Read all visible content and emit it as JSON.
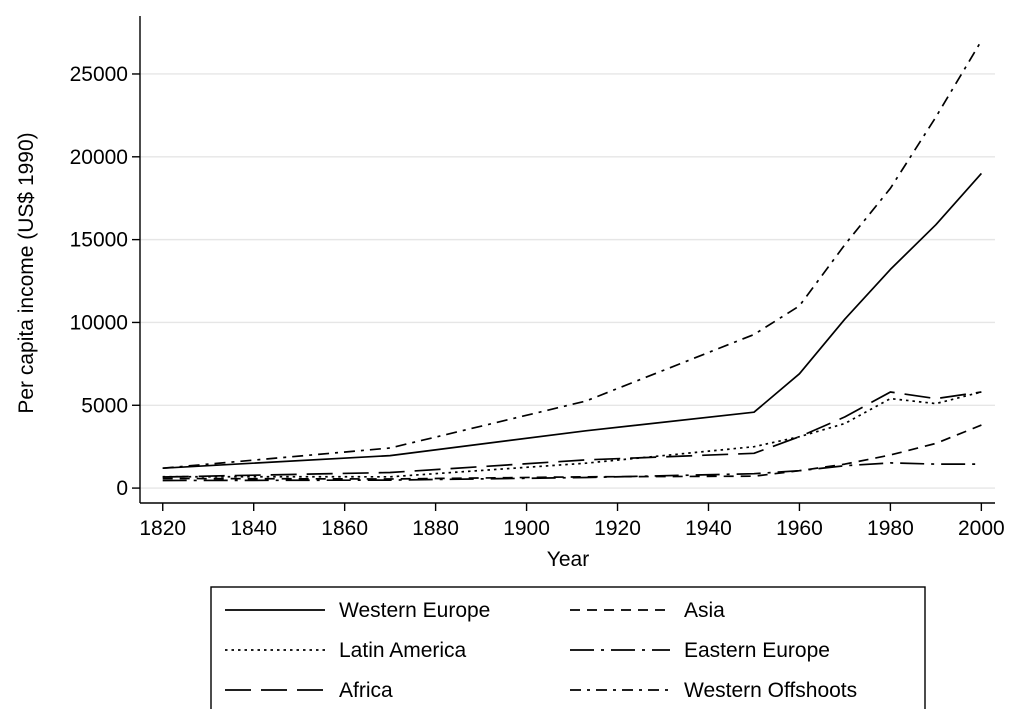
{
  "chart_data": {
    "type": "line",
    "xlabel": "Year",
    "ylabel": "Per capita income (US$ 1990)",
    "xlim": [
      1815,
      2003
    ],
    "ylim": [
      -900,
      28500
    ],
    "xticks": [
      1820,
      1840,
      1860,
      1880,
      1900,
      1920,
      1940,
      1960,
      1980,
      2000
    ],
    "yticks": [
      0,
      5000,
      10000,
      15000,
      20000,
      25000
    ],
    "grid": true,
    "legend_position": "bottom",
    "series": [
      {
        "name": "Western Europe",
        "dash": "solid",
        "x": [
          1820,
          1870,
          1913,
          1950,
          1960,
          1970,
          1980,
          1990,
          2000
        ],
        "y": [
          1200,
          1960,
          3460,
          4580,
          6900,
          10200,
          13200,
          15900,
          19000
        ]
      },
      {
        "name": "Asia",
        "dash": "dash",
        "x": [
          1820,
          1870,
          1913,
          1950,
          1960,
          1970,
          1980,
          1990,
          2000
        ],
        "y": [
          580,
          550,
          680,
          720,
          1050,
          1450,
          2000,
          2700,
          3800
        ]
      },
      {
        "name": "Latin America",
        "dash": "dot",
        "x": [
          1820,
          1870,
          1913,
          1950,
          1960,
          1970,
          1980,
          1990,
          2000
        ],
        "y": [
          690,
          680,
          1500,
          2500,
          3100,
          3900,
          5400,
          5100,
          5800
        ]
      },
      {
        "name": "Eastern Europe",
        "dash": "longdashdot",
        "x": [
          1820,
          1870,
          1913,
          1950,
          1960,
          1970,
          1980,
          1990,
          2000
        ],
        "y": [
          460,
          480,
          640,
          870,
          1050,
          1350,
          1520,
          1450,
          1450
        ]
      },
      {
        "name": "Africa",
        "dash": "longdash",
        "x": [
          1820,
          1870,
          1913,
          1950,
          1960,
          1970,
          1980,
          1990,
          2000
        ],
        "y": [
          670,
          940,
          1700,
          2100,
          3100,
          4300,
          5800,
          5400,
          5800
        ]
      },
      {
        "name": "Western Offshoots",
        "dash": "dashdot",
        "x": [
          1820,
          1870,
          1913,
          1950,
          1960,
          1970,
          1980,
          1990,
          2000
        ],
        "y": [
          1200,
          2420,
          5250,
          9270,
          11000,
          14700,
          18100,
          22400,
          27000
        ]
      }
    ]
  }
}
